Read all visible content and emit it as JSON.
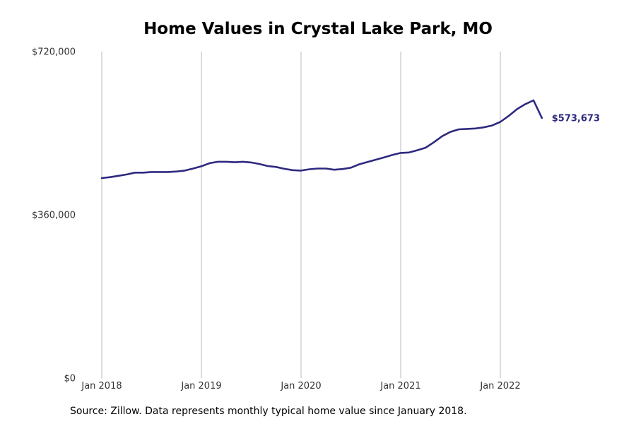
{
  "chart_data": {
    "type": "line",
    "title": "Home Values in Crystal Lake Park, MO",
    "xlabel": "",
    "ylabel": "",
    "x_tick_labels": [
      "Jan 2018",
      "Jan 2019",
      "Jan 2020",
      "Jan 2021",
      "Jan 2022"
    ],
    "y_tick_labels": [
      "$0",
      "$360,000",
      "$720,000"
    ],
    "y_ticks": [
      0,
      360000,
      720000
    ],
    "ylim": [
      0,
      720000
    ],
    "grid": "vertical lines at January of each year",
    "legend": "none",
    "line_color": "#2e2a7f",
    "end_label": "$573,673",
    "series": [
      {
        "x": [
          "2018-01",
          "2018-02",
          "2018-03",
          "2018-04",
          "2018-05",
          "2018-06",
          "2018-07",
          "2018-08",
          "2018-09",
          "2018-10",
          "2018-11",
          "2018-12",
          "2019-01",
          "2019-02",
          "2019-03",
          "2019-04",
          "2019-05",
          "2019-06",
          "2019-07",
          "2019-08",
          "2019-09",
          "2019-10",
          "2019-11",
          "2019-12",
          "2020-01",
          "2020-02",
          "2020-03",
          "2020-04",
          "2020-05",
          "2020-06",
          "2020-07",
          "2020-08",
          "2020-09",
          "2020-10",
          "2020-11",
          "2020-12",
          "2021-01",
          "2021-02",
          "2021-03",
          "2021-04",
          "2021-05",
          "2021-06",
          "2021-07",
          "2021-08",
          "2021-09",
          "2021-10",
          "2021-11",
          "2021-12",
          "2022-01",
          "2022-02",
          "2022-03",
          "2022-04",
          "2022-05",
          "2022-06"
        ],
        "values": [
          441000,
          443000,
          446000,
          449000,
          453000,
          453000,
          454500,
          454500,
          454500,
          455500,
          457500,
          462000,
          467000,
          474000,
          477000,
          477000,
          476000,
          477000,
          475500,
          472000,
          467500,
          465500,
          461500,
          458500,
          457500,
          460500,
          462000,
          462000,
          459500,
          461000,
          464000,
          471500,
          476500,
          481500,
          486500,
          492000,
          496500,
          497500,
          502500,
          508000,
          520000,
          533500,
          543000,
          548500,
          549500,
          550500,
          553000,
          557000,
          565000,
          578000,
          593000,
          604000,
          612500,
          573673
        ]
      }
    ]
  },
  "source_note": "Source: Zillow. Data represents monthly typical home value since January 2018."
}
